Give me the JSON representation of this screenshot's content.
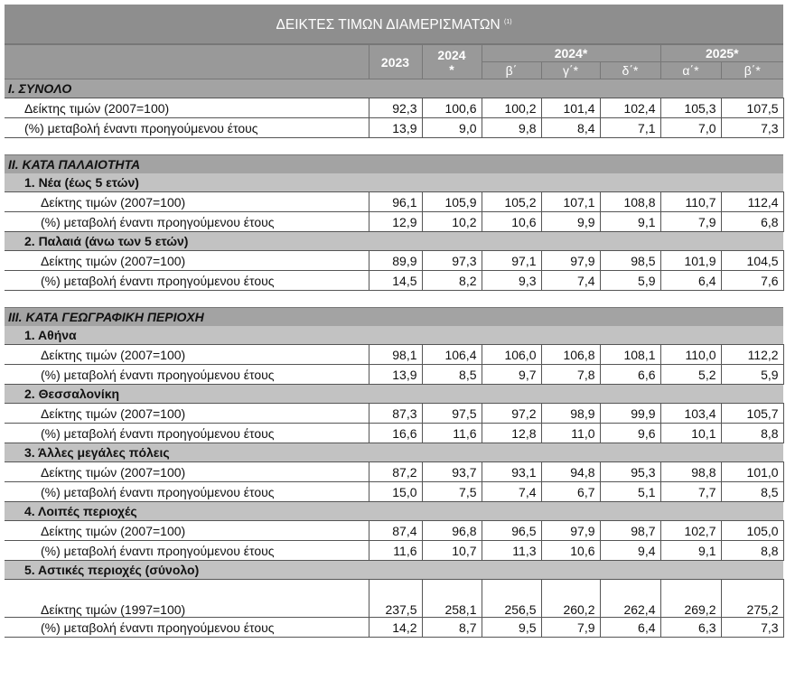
{
  "title": "ΔΕΙΚΤΕΣ ΤΙΜΩΝ ΔΙΑΜΕΡΙΣΜΑΤΩΝ",
  "title_note": "(1)",
  "header": {
    "col_2023": "2023",
    "col_2024_line1": "2024",
    "col_2024_line2": "*",
    "group_2024": "2024*",
    "group_2025": "2025*",
    "quarters": [
      "β΄",
      "γ΄*",
      "δ΄*",
      "α΄*",
      "β΄*"
    ]
  },
  "sections": [
    {
      "title": "I. ΣΥΝΟΛΟ",
      "groups": [
        {
          "title": "",
          "rows": [
            {
              "label": "Δείκτης τιμών (2007=100)",
              "values": [
                "92,3",
                "100,6",
                "100,2",
                "101,4",
                "102,4",
                "105,3",
                "107,5"
              ]
            },
            {
              "label": "(%) μεταβολή έναντι προηγούμενου έτους",
              "values": [
                "13,9",
                "9,0",
                "9,8",
                "8,4",
                "7,1",
                "7,0",
                "7,3"
              ]
            }
          ]
        }
      ]
    },
    {
      "title": "II. ΚΑΤΑ ΠΑΛΑΙΟΤΗΤΑ",
      "groups": [
        {
          "title": "1. Νέα (έως 5 ετών)",
          "rows": [
            {
              "label": "Δείκτης τιμών (2007=100)",
              "values": [
                "96,1",
                "105,9",
                "105,2",
                "107,1",
                "108,8",
                "110,7",
                "112,4"
              ]
            },
            {
              "label": "(%) μεταβολή έναντι προηγούμενου έτους",
              "values": [
                "12,9",
                "10,2",
                "10,6",
                "9,9",
                "9,1",
                "7,9",
                "6,8"
              ]
            }
          ]
        },
        {
          "title": "2. Παλαιά (άνω των 5 ετών)",
          "rows": [
            {
              "label": "Δείκτης τιμών (2007=100)",
              "values": [
                "89,9",
                "97,3",
                "97,1",
                "97,9",
                "98,5",
                "101,9",
                "104,5"
              ]
            },
            {
              "label": "(%) μεταβολή έναντι προηγούμενου έτους",
              "values": [
                "14,5",
                "8,2",
                "9,3",
                "7,4",
                "5,9",
                "6,4",
                "7,6"
              ]
            }
          ]
        }
      ]
    },
    {
      "title": "III. ΚΑΤΑ ΓΕΩΓΡΑΦΙΚΗ ΠΕΡΙΟΧΗ",
      "groups": [
        {
          "title": "1. Αθήνα",
          "rows": [
            {
              "label": "Δείκτης τιμών (2007=100)",
              "values": [
                "98,1",
                "106,4",
                "106,0",
                "106,8",
                "108,1",
                "110,0",
                "112,2"
              ]
            },
            {
              "label": "(%) μεταβολή έναντι προηγούμενου έτους",
              "values": [
                "13,9",
                "8,5",
                "9,7",
                "7,8",
                "6,6",
                "5,2",
                "5,9"
              ]
            }
          ]
        },
        {
          "title": "2. Θεσσαλονίκη",
          "rows": [
            {
              "label": "Δείκτης τιμών (2007=100)",
              "values": [
                "87,3",
                "97,5",
                "97,2",
                "98,9",
                "99,9",
                "103,4",
                "105,7"
              ]
            },
            {
              "label": "(%) μεταβολή έναντι προηγούμενου έτους",
              "values": [
                "16,6",
                "11,6",
                "12,8",
                "11,0",
                "9,6",
                "10,1",
                "8,8"
              ]
            }
          ]
        },
        {
          "title": "3. Άλλες μεγάλες πόλεις",
          "rows": [
            {
              "label": "Δείκτης τιμών (2007=100)",
              "values": [
                "87,2",
                "93,7",
                "93,1",
                "94,8",
                "95,3",
                "98,8",
                "101,0"
              ]
            },
            {
              "label": "(%) μεταβολή έναντι προηγούμενου έτους",
              "values": [
                "15,0",
                "7,5",
                "7,4",
                "6,7",
                "5,1",
                "7,7",
                "8,5"
              ]
            }
          ]
        },
        {
          "title": "4. Λοιπές περιοχές",
          "rows": [
            {
              "label": "Δείκτης τιμών (2007=100)",
              "values": [
                "87,4",
                "96,8",
                "96,5",
                "97,9",
                "98,7",
                "102,7",
                "105,0"
              ]
            },
            {
              "label": "(%) μεταβολή έναντι προηγούμενου έτους",
              "values": [
                "11,6",
                "10,7",
                "11,3",
                "10,6",
                "9,4",
                "9,1",
                "8,8"
              ]
            }
          ]
        },
        {
          "title": "5. Αστικές περιοχές (σύνολο)",
          "rows": [
            {
              "label": "Δείκτης τιμών (1997=100)",
              "values": [
                "237,5",
                "258,1",
                "256,5",
                "260,2",
                "262,4",
                "269,2",
                "275,2"
              ],
              "tall": true
            },
            {
              "label": "(%) μεταβολή έναντι προηγούμενου έτους",
              "values": [
                "14,2",
                "8,7",
                "9,5",
                "7,9",
                "6,4",
                "6,3",
                "7,3"
              ]
            }
          ]
        }
      ]
    }
  ]
}
